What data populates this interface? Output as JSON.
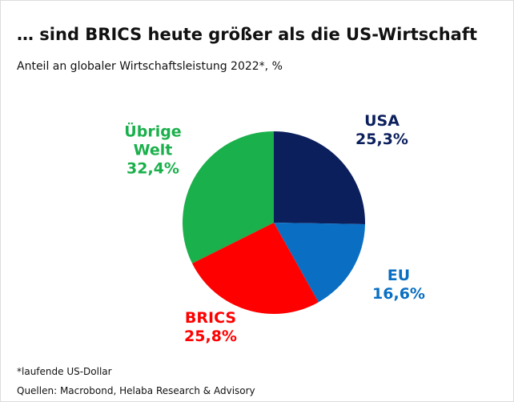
{
  "chart_data": {
    "type": "pie",
    "title": "… sind BRICS heute größer als die US-Wirtschaft",
    "subtitle": "Anteil an globaler Wirtschaftsleistung 2022*, %",
    "categories": [
      "USA",
      "EU",
      "BRICS",
      "Übrige Welt"
    ],
    "values": [
      25.3,
      16.6,
      25.8,
      32.4
    ],
    "value_labels": [
      "25,3%",
      "16,6%",
      "25,8%",
      "32,4%"
    ],
    "colors": [
      "#0b1f5c",
      "#0a6fc2",
      "#ff0000",
      "#1ab04b"
    ],
    "notes": [
      "*laufende US-Dollar",
      "Quellen: Macrobond, Helaba Research & Advisory"
    ]
  }
}
